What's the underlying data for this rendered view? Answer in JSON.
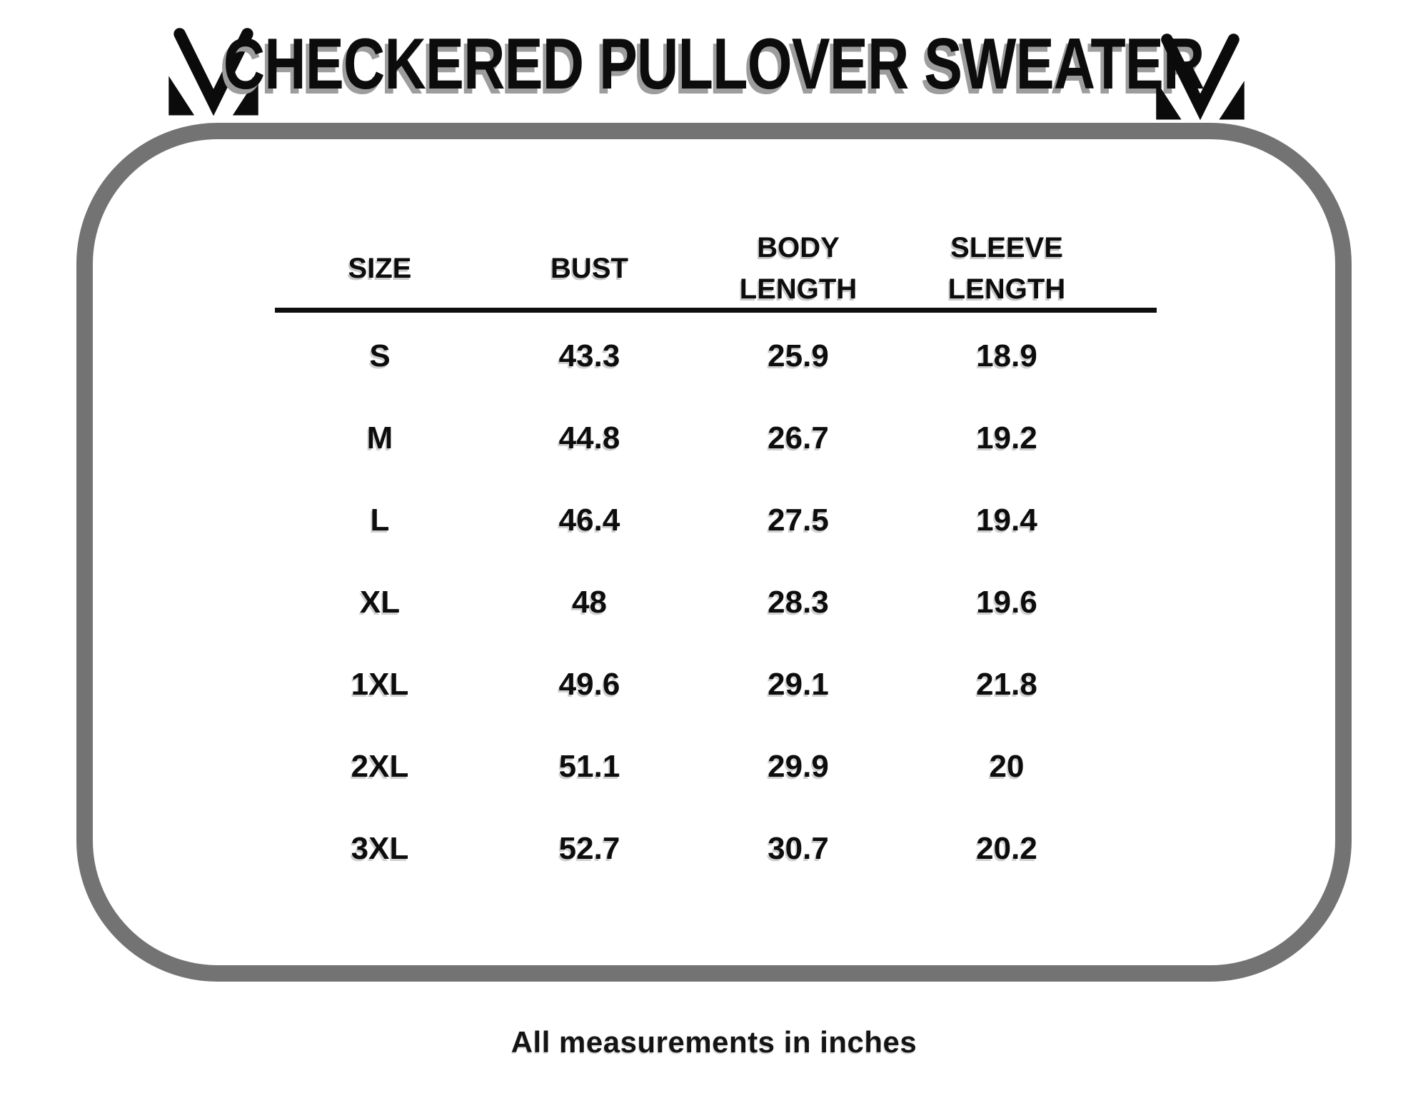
{
  "title": "CHECKERED PULLOVER SWEATER",
  "brand_logo": "m-monogram-icon",
  "size_chart": {
    "columns": [
      "SIZE",
      "BUST",
      "BODY\nLENGTH",
      "SLEEVE\nLENGTH"
    ],
    "rows": [
      [
        "S",
        "43.3",
        "25.9",
        "18.9"
      ],
      [
        "M",
        "44.8",
        "26.7",
        "19.2"
      ],
      [
        "L",
        "46.4",
        "27.5",
        "19.4"
      ],
      [
        "XL",
        "48",
        "28.3",
        "19.6"
      ],
      [
        "1XL",
        "49.6",
        "29.1",
        "21.8"
      ],
      [
        "2XL",
        "51.1",
        "29.9",
        "20"
      ],
      [
        "3XL",
        "52.7",
        "30.7",
        "20.2"
      ]
    ]
  },
  "footer_note": "All measurements in inches",
  "colors": {
    "background": "#ffffff",
    "frame_border": "#737373",
    "text": "#0d0d0d",
    "title_shadow": "#9d9d9d",
    "divider": "#0e0e0e"
  },
  "chart_data": {
    "type": "table",
    "title": "CHECKERED PULLOVER SWEATER",
    "columns": [
      "SIZE",
      "BUST",
      "BODY LENGTH",
      "SLEEVE LENGTH"
    ],
    "rows": [
      [
        "S",
        43.3,
        25.9,
        18.9
      ],
      [
        "M",
        44.8,
        26.7,
        19.2
      ],
      [
        "L",
        46.4,
        27.5,
        19.4
      ],
      [
        "XL",
        48,
        28.3,
        19.6
      ],
      [
        "1XL",
        49.6,
        29.1,
        21.8
      ],
      [
        "2XL",
        51.1,
        29.9,
        20
      ],
      [
        "3XL",
        52.7,
        30.7,
        20.2
      ]
    ],
    "units": "inches",
    "notes": "All measurements in inches"
  }
}
